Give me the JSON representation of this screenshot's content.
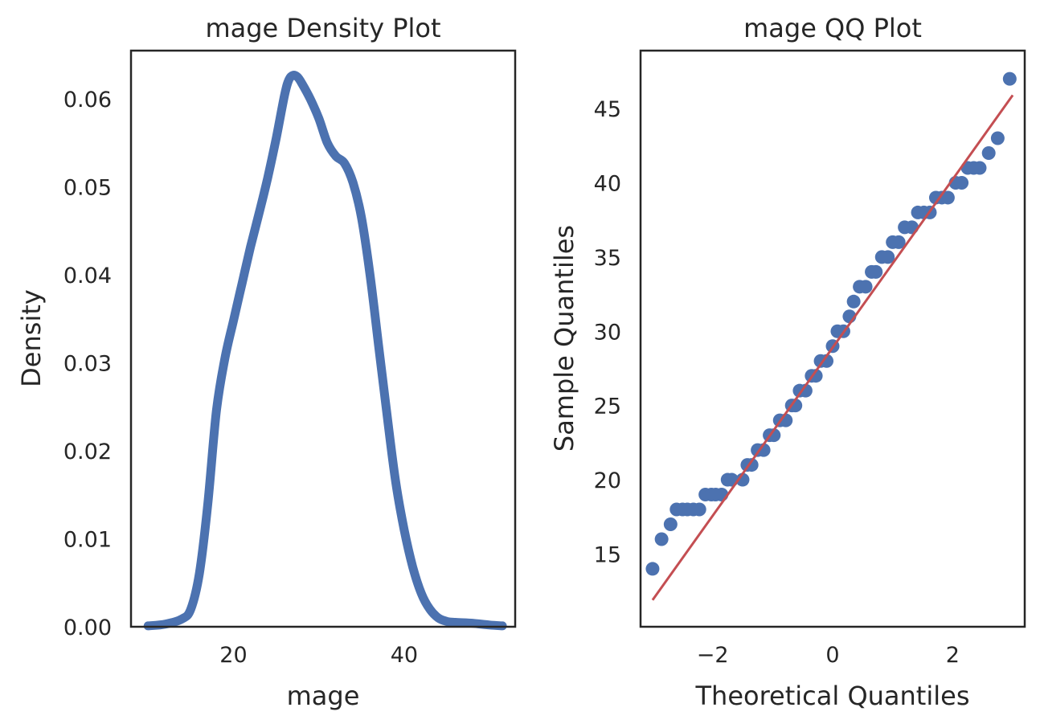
{
  "colors": {
    "density": "#4c72b0",
    "points": "#4c72b0",
    "ref_line": "#c44e52",
    "axes": "#262626"
  },
  "chart_data": [
    {
      "type": "line",
      "title": "mage Density Plot",
      "xlabel": "mage",
      "ylabel": "Density",
      "xlim": [
        8,
        53
      ],
      "ylim": [
        0,
        0.0655
      ],
      "xticks": [
        20,
        40
      ],
      "xtick_labels": [
        "20",
        "40"
      ],
      "yticks": [
        0,
        0.01,
        0.02,
        0.03,
        0.04,
        0.05,
        0.06
      ],
      "ytick_labels": [
        "0.00",
        "0.01",
        "0.02",
        "0.03",
        "0.04",
        "0.05",
        "0.06"
      ],
      "grid": false,
      "series": [
        {
          "x": [
            10,
            12,
            14,
            15,
            16,
            17,
            18,
            19,
            20,
            21,
            22,
            23,
            24,
            25,
            26,
            26.5,
            27,
            27.5,
            28,
            29,
            30,
            31,
            32,
            33,
            34,
            35,
            36,
            37,
            38,
            39,
            40,
            41,
            42,
            43,
            44,
            45,
            46,
            48,
            50,
            51.5
          ],
          "y": [
            0.0001,
            0.0003,
            0.0009,
            0.002,
            0.006,
            0.014,
            0.0245,
            0.0305,
            0.0348,
            0.039,
            0.0432,
            0.047,
            0.051,
            0.0555,
            0.0605,
            0.0622,
            0.0627,
            0.0625,
            0.0618,
            0.06,
            0.0578,
            0.055,
            0.0535,
            0.0527,
            0.0505,
            0.0465,
            0.04,
            0.032,
            0.024,
            0.0165,
            0.011,
            0.0068,
            0.0038,
            0.002,
            0.001,
            0.0006,
            0.0005,
            0.0004,
            0.0002,
            0.0001
          ]
        }
      ]
    },
    {
      "type": "scatter",
      "title": "mage QQ Plot",
      "xlabel": "Theoretical Quantiles",
      "ylabel": "Sample Quantiles",
      "xlim": [
        -3.2,
        3.2
      ],
      "ylim": [
        10.1,
        48.9
      ],
      "xticks": [
        -2,
        0,
        2
      ],
      "xtick_labels": [
        "−2",
        "0",
        "2"
      ],
      "yticks": [
        15,
        20,
        25,
        30,
        35,
        40,
        45
      ],
      "ytick_labels": [
        "15",
        "20",
        "25",
        "30",
        "35",
        "40",
        "45"
      ],
      "grid": false,
      "series": [
        {
          "name": "",
          "x": [
            -3.0,
            -2.85,
            -2.7,
            -2.6,
            -2.5,
            -2.42,
            -2.32,
            -2.22,
            -2.12,
            -2.02,
            -1.95,
            -1.85,
            -1.75,
            -1.68,
            -1.5,
            -1.42,
            -1.35,
            -1.25,
            -1.15,
            -1.05,
            -0.98,
            -0.88,
            -0.78,
            -0.68,
            -0.62,
            -0.55,
            -0.45,
            -0.35,
            -0.28,
            -0.2,
            -0.1,
            0.0,
            0.08,
            0.18,
            0.28,
            0.35,
            0.45,
            0.55,
            0.65,
            0.72,
            0.82,
            0.92,
            1.0,
            1.1,
            1.2,
            1.32,
            1.42,
            1.52,
            1.62,
            1.72,
            1.82,
            1.92,
            2.05,
            2.15,
            2.25,
            2.35,
            2.45,
            2.6,
            2.75,
            2.95
          ],
          "values": [
            14,
            16,
            17,
            18,
            18,
            18,
            18,
            18,
            19,
            19,
            19,
            19,
            20,
            20,
            20,
            21,
            21,
            22,
            22,
            23,
            23,
            24,
            24,
            25,
            25,
            26,
            26,
            27,
            27,
            28,
            28,
            29,
            30,
            30,
            31,
            32,
            33,
            33,
            34,
            34,
            35,
            35,
            36,
            36,
            37,
            37,
            38,
            38,
            38,
            39,
            39,
            39,
            40,
            40,
            41,
            41,
            41,
            42,
            43,
            47
          ]
        }
      ],
      "reference_line": {
        "x": [
          -3.0,
          3.0
        ],
        "y": [
          11.9,
          45.9
        ]
      }
    }
  ]
}
